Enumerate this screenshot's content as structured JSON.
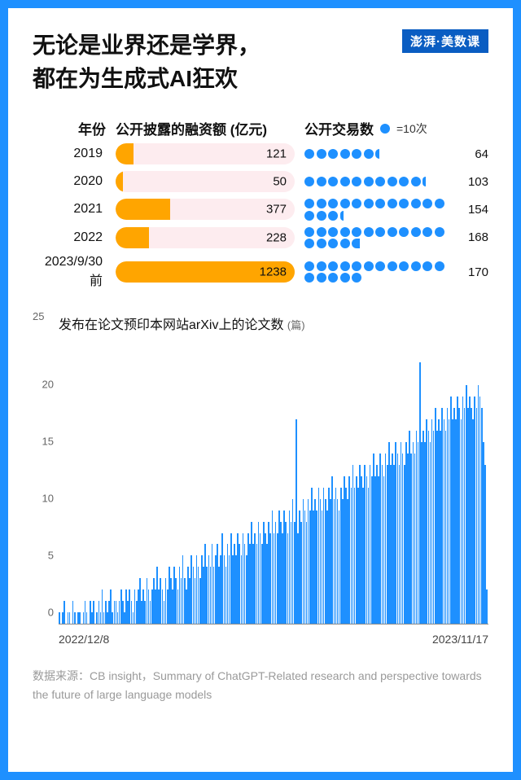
{
  "title_line1": "无论是业界还是学界，",
  "title_line2": "都在为生成式AI狂欢",
  "logo": "澎湃·美数课",
  "table": {
    "headers": {
      "year": "年份",
      "funding": "公开披露的融资额 (亿元)",
      "deals": "公开交易数"
    },
    "legend": {
      "dot_color": "#1e90ff",
      "label": "=10次"
    },
    "bar_track_color": "#fdecef",
    "bar_fill_color": "#ffa500",
    "dot_color": "#1e90ff",
    "max_funding": 1238,
    "rows": [
      {
        "year": "2019",
        "funding": 121,
        "deals": 64
      },
      {
        "year": "2020",
        "funding": 50,
        "deals": 103
      },
      {
        "year": "2021",
        "funding": 377,
        "deals": 154
      },
      {
        "year": "2022",
        "funding": 228,
        "deals": 168
      },
      {
        "year": "2023/9/30前",
        "funding": 1238,
        "deals": 170
      }
    ]
  },
  "chart": {
    "type": "bar",
    "title": "发布在论文预印本网站arXiv上的论文数",
    "unit": "(篇)",
    "ylim": [
      0,
      25
    ],
    "yticks": [
      0,
      5,
      10,
      15,
      20,
      25
    ],
    "xlabels": [
      "2022/12/8",
      "2023/11/17"
    ],
    "bar_color": "#1e90ff",
    "background_color": "#ffffff",
    "axis_color": "#888888",
    "tick_fontsize": 13,
    "title_fontsize": 16,
    "values": [
      1,
      0,
      1,
      2,
      0,
      1,
      1,
      0,
      2,
      1,
      0,
      1,
      1,
      0,
      1,
      2,
      1,
      0,
      2,
      1,
      2,
      0,
      1,
      2,
      1,
      3,
      1,
      2,
      1,
      2,
      3,
      1,
      2,
      2,
      1,
      2,
      3,
      2,
      1,
      3,
      2,
      3,
      2,
      1,
      3,
      2,
      3,
      4,
      2,
      3,
      2,
      4,
      3,
      2,
      3,
      4,
      3,
      5,
      3,
      4,
      3,
      2,
      4,
      3,
      5,
      4,
      3,
      5,
      4,
      3,
      5,
      4,
      6,
      4,
      3,
      5,
      4,
      6,
      5,
      4,
      6,
      5,
      4,
      6,
      5,
      7,
      5,
      6,
      5,
      7,
      5,
      6,
      7,
      5,
      6,
      8,
      6,
      5,
      7,
      6,
      8,
      6,
      7,
      6,
      8,
      7,
      6,
      8,
      7,
      6,
      8,
      7,
      9,
      7,
      8,
      7,
      9,
      8,
      7,
      9,
      8,
      7,
      9,
      8,
      10,
      8,
      9,
      8,
      10,
      9,
      8,
      10,
      9,
      8,
      10,
      9,
      11,
      9,
      18,
      8,
      10,
      9,
      11,
      10,
      9,
      11,
      10,
      12,
      10,
      11,
      10,
      12,
      11,
      10,
      12,
      11,
      10,
      12,
      11,
      13,
      11,
      12,
      11,
      10,
      12,
      11,
      13,
      12,
      11,
      13,
      12,
      14,
      12,
      13,
      12,
      14,
      13,
      12,
      14,
      13,
      12,
      14,
      13,
      15,
      13,
      14,
      13,
      15,
      14,
      13,
      15,
      14,
      16,
      14,
      15,
      14,
      16,
      15,
      14,
      16,
      15,
      14,
      16,
      15,
      17,
      15,
      16,
      15,
      17,
      16,
      23,
      16,
      17,
      16,
      18,
      17,
      16,
      18,
      17,
      19,
      17,
      18,
      17,
      19,
      18,
      17,
      19,
      18,
      20,
      18,
      19,
      18,
      20,
      19,
      18,
      20,
      19,
      21,
      19,
      20,
      19,
      18,
      20,
      19,
      21,
      20,
      19,
      16,
      14,
      3
    ]
  },
  "source": "数据来源：CB insight，Summary of ChatGPT-Related research and perspective towards the future of large language models"
}
